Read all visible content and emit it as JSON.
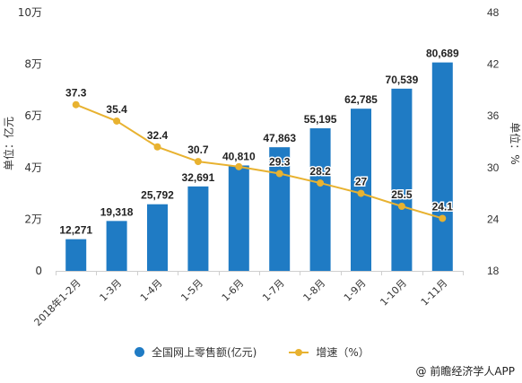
{
  "chart_data": {
    "type": "bar",
    "categories": [
      "2018年1-2月",
      "1-3月",
      "1-4月",
      "1-5月",
      "1-6月",
      "1-7月",
      "1-8月",
      "1-9月",
      "1-10月",
      "1-11月"
    ],
    "series": [
      {
        "name": "全国网上零售额(亿元)",
        "type": "bar",
        "axis": "left",
        "values": [
          12271,
          19318,
          25792,
          32691,
          40810,
          47863,
          55195,
          62785,
          70539,
          80689
        ],
        "labels": [
          "12,271",
          "19,318",
          "25,792",
          "32,691",
          "40,810",
          "47,863",
          "55,195",
          "62,785",
          "70,539",
          "80,689"
        ],
        "color": "#1f7bc4"
      },
      {
        "name": "增速（%）",
        "type": "line",
        "axis": "right",
        "values": [
          37.3,
          35.4,
          32.4,
          30.7,
          30.1,
          29.3,
          28.2,
          27,
          25.5,
          24.1
        ],
        "labels": [
          "37.3",
          "35.4",
          "32.4",
          "30.7",
          "",
          "29.3",
          "28.2",
          "27",
          "25.5",
          "24.1"
        ],
        "color": "#e8b230"
      }
    ],
    "y_left": {
      "label": "单位：亿元",
      "min": 0,
      "max": 100000,
      "ticks": [
        0,
        20000,
        40000,
        60000,
        80000,
        100000
      ],
      "tick_labels": [
        "0",
        "2万",
        "4万",
        "6万",
        "8万",
        "10万"
      ]
    },
    "y_right": {
      "label": "单位：%",
      "min": 18,
      "max": 48,
      "ticks": [
        18,
        24,
        30,
        36,
        42,
        48
      ],
      "tick_labels": [
        "18",
        "24",
        "30",
        "36",
        "42",
        "48"
      ]
    },
    "grid": false,
    "legend_position": "bottom"
  },
  "legend": {
    "bar_label": "全国网上零售额(亿元)",
    "line_label": "增速（%）"
  },
  "source": "@ 前瞻经济学人APP"
}
